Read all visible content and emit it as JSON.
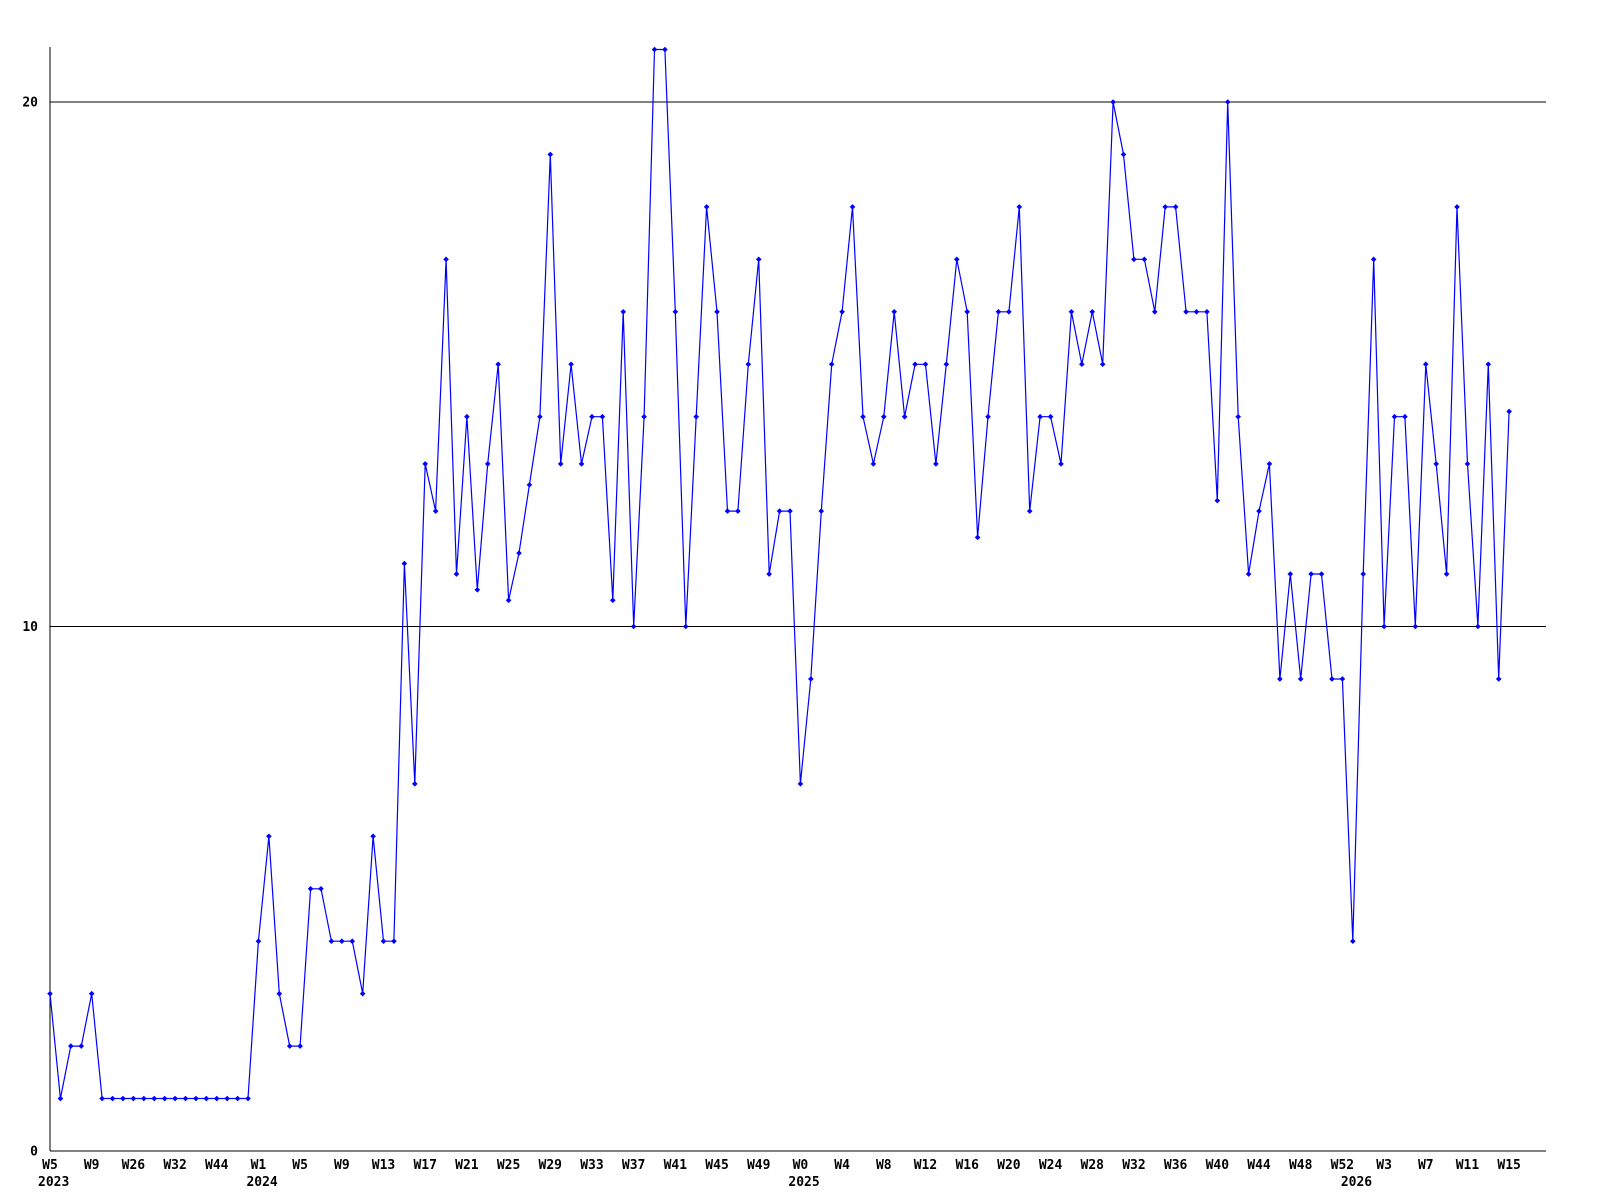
{
  "chart_data": {
    "type": "line",
    "title": "",
    "xlabel": "",
    "ylabel": "",
    "legend": "none",
    "grid": "horizontal lines at y=10 and y=20",
    "line_color": "#0000ff",
    "axis_color": "#000000",
    "background_color": "#ffffff",
    "ylim": [
      0,
      21.2
    ],
    "yticks": [
      0,
      10,
      20
    ],
    "ytick_labels": [
      "0",
      "10",
      "20"
    ],
    "samples_per_tick": 4,
    "x_tick_labels": [
      "W5",
      "W9",
      "W26",
      "W32",
      "W44",
      "W1",
      "W5",
      "W9",
      "W13",
      "W17",
      "W21",
      "W25",
      "W29",
      "W33",
      "W37",
      "W41",
      "W45",
      "W49",
      "W0",
      "W4",
      "W8",
      "W12",
      "W16",
      "W20",
      "W24",
      "W28",
      "W32",
      "W36",
      "W40",
      "W44",
      "W48",
      "W52",
      "W3",
      "W7",
      "W11",
      "W15"
    ],
    "year_labels": [
      {
        "text": "2023",
        "tick": 0
      },
      {
        "text": "2024",
        "tick": 5
      },
      {
        "text": "2025",
        "tick": 18
      },
      {
        "text": "2026",
        "tick": 31.25
      }
    ],
    "values": [
      3,
      1,
      2,
      2,
      3,
      1,
      1,
      1,
      1,
      1,
      1,
      1,
      1,
      1,
      1,
      1,
      1,
      1,
      1,
      1,
      4,
      6,
      3,
      2,
      2,
      5,
      5,
      4,
      4,
      4,
      3,
      6,
      4,
      4,
      11.2,
      7,
      13.1,
      12.2,
      17,
      11,
      14,
      10.7,
      13.1,
      15,
      10.5,
      11.4,
      12.7,
      14,
      19,
      13.1,
      15,
      13.1,
      14,
      14,
      10.5,
      16,
      10,
      14,
      21,
      21,
      16,
      10,
      14,
      18,
      16,
      12.2,
      12.2,
      15,
      17,
      11,
      12.2,
      12.2,
      7,
      9,
      12.2,
      15,
      16,
      18,
      14,
      13.1,
      14,
      16,
      14,
      15,
      15,
      13.1,
      15,
      17,
      16,
      11.7,
      14,
      16,
      16,
      18,
      12.2,
      14,
      14,
      13.1,
      16,
      15,
      16,
      15,
      20,
      19,
      17,
      17,
      16,
      18,
      18,
      16,
      16,
      16,
      12.4,
      20,
      14,
      11,
      12.2,
      13.1,
      9,
      11,
      9,
      11,
      11,
      9,
      9,
      4,
      11,
      17,
      10,
      14,
      14,
      10,
      15,
      13.1,
      11,
      18,
      13.1,
      10,
      15,
      9,
      14.1
    ]
  }
}
